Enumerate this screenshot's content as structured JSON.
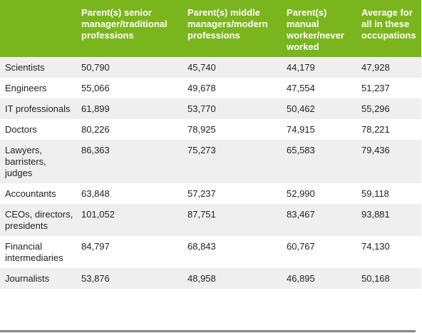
{
  "table": {
    "headers": [
      "",
      "Parent(s) senior manager/traditional professions",
      "Parent(s) middle managers/modern professions",
      "Parent(s) manual worker/never worked",
      "Average for all in these occupations"
    ],
    "rows": [
      [
        "Scientists",
        "50,790",
        "45,740",
        "44,179",
        "47,928"
      ],
      [
        "Engineers",
        "55,066",
        "49,678",
        "47,554",
        "51,237"
      ],
      [
        "IT professionals",
        "61,899",
        "53,770",
        "50,462",
        "55,296"
      ],
      [
        "Doctors",
        "80,226",
        "78,925",
        "74,915",
        "78,221"
      ],
      [
        "Lawyers, barristers, judges",
        "86,363",
        "75,273",
        "65,583",
        "79,436"
      ],
      [
        "Accountants",
        "63,848",
        "57,237",
        "52,990",
        "59,118"
      ],
      [
        "CEOs, directors, presidents",
        "101,052",
        "87,751",
        "83,467",
        "93,881"
      ],
      [
        "Financial intermediaries",
        "84,797",
        "68,843",
        "60,767",
        "74,130"
      ],
      [
        "Journalists",
        "53,876",
        "48,958",
        "46,895",
        "50,168"
      ]
    ]
  },
  "colors": {
    "header_bg": "#7ab51d",
    "row_alt_bg": "#efefef"
  }
}
